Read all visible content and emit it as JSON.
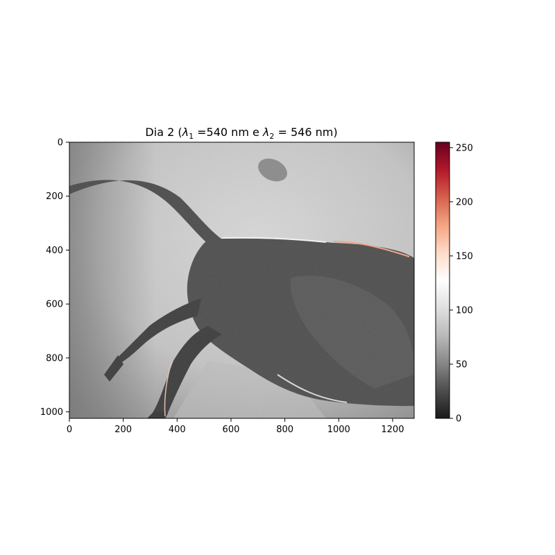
{
  "chart_data": {
    "type": "heatmap",
    "title": "Dia 2 (λ₁ =540 nm e λ₂ = 546 nm)",
    "title_parts": {
      "prefix": "Dia 2 (",
      "lambda": "λ",
      "sub1": "1",
      "mid": " =540 nm e ",
      "sub2": "2",
      "suffix": " = 546 nm)"
    },
    "description": "Grayscale image of a mouse (side view) with colorbar",
    "image_width": 1280,
    "image_height": 1024,
    "xlim": [
      0,
      1280
    ],
    "ylim": [
      1024,
      0
    ],
    "x_ticks": [
      0,
      200,
      400,
      600,
      800,
      1000,
      1200
    ],
    "y_ticks": [
      0,
      200,
      400,
      600,
      800,
      1000
    ],
    "colorbar": {
      "colormap": "RdGy_r",
      "range": [
        0,
        255
      ],
      "ticks": [
        0,
        50,
        100,
        150,
        200,
        250
      ],
      "stops": [
        "#1a1a1a",
        "#4d4d4d",
        "#878787",
        "#bababa",
        "#e0e0e0",
        "#ffffff",
        "#fddbc7",
        "#f4a582",
        "#d6604d",
        "#b2182b",
        "#67001f"
      ]
    },
    "grid": false
  }
}
